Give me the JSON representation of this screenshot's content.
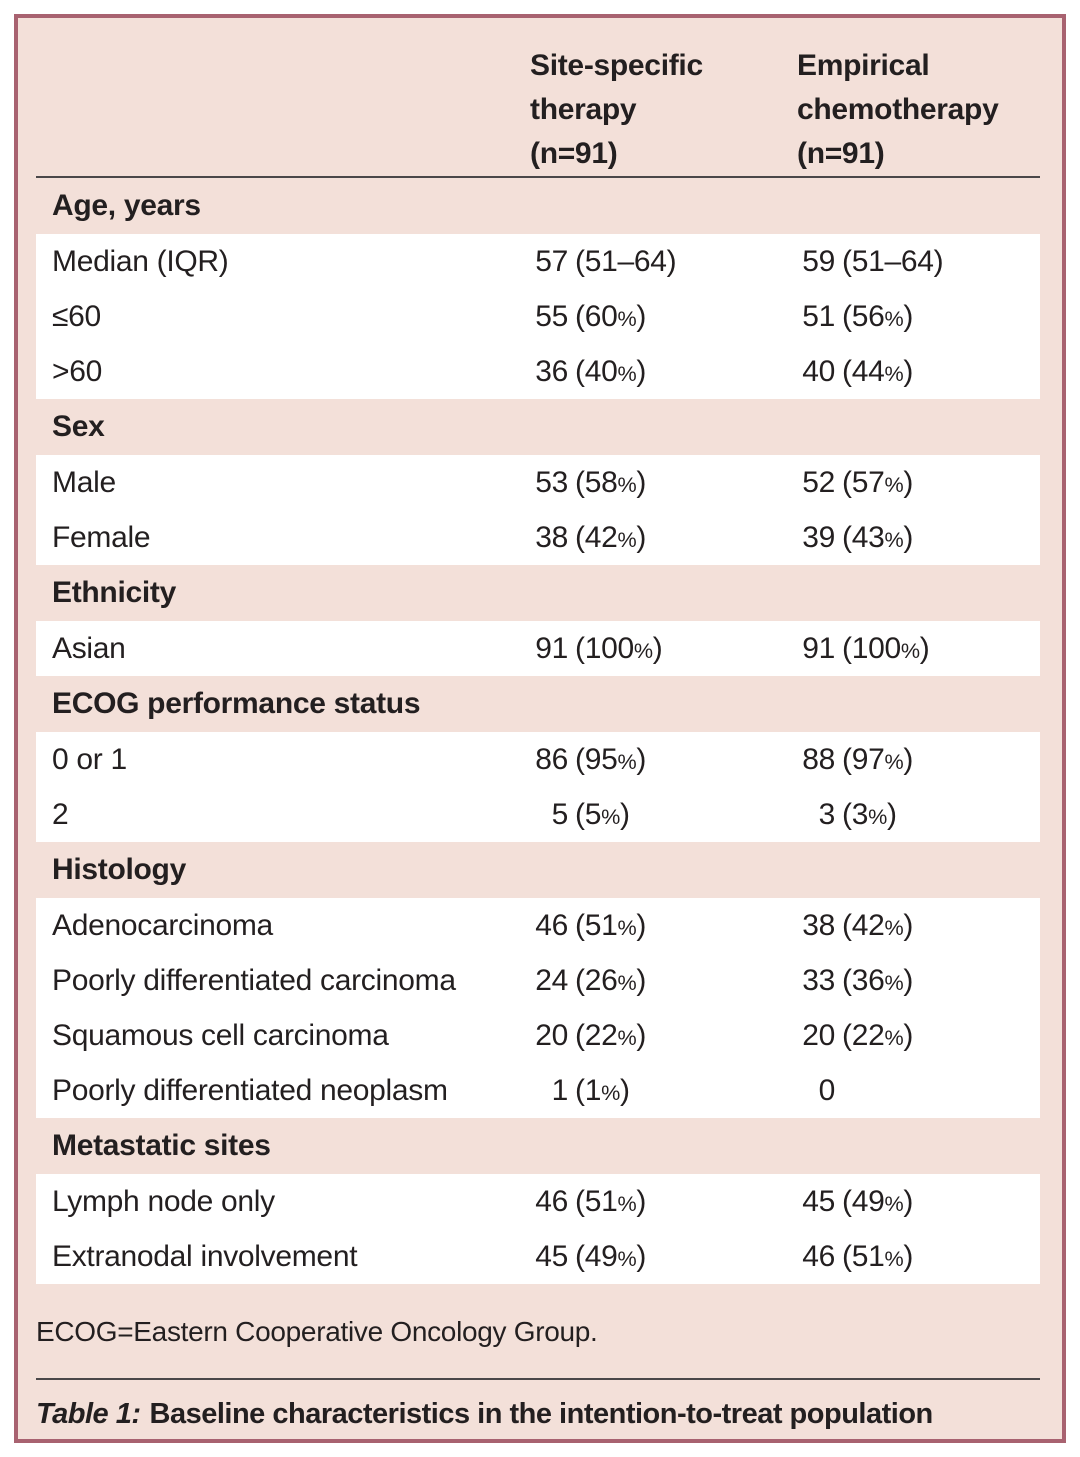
{
  "colors": {
    "panel_bg": "#f3e0d9",
    "panel_border": "#a86270",
    "row_bg": "#ffffff",
    "text": "#231f20",
    "rule": "#4a4749"
  },
  "header": {
    "col_site": [
      "Site-specific",
      "therapy",
      "(n=91)"
    ],
    "col_chemo": [
      "Empirical",
      "chemotherapy",
      "(n=91)"
    ]
  },
  "sections": [
    {
      "title": "Age, years",
      "rows": [
        {
          "label": "Median (IQR)",
          "a": [
            "57",
            "(51–64)"
          ],
          "b": [
            "59",
            "(51–64)"
          ]
        },
        {
          "label": "≤60",
          "a": [
            "55",
            "(60%)"
          ],
          "b": [
            "51",
            "(56%)"
          ]
        },
        {
          "label": ">60",
          "a": [
            "36",
            "(40%)"
          ],
          "b": [
            "40",
            "(44%)"
          ]
        }
      ]
    },
    {
      "title": "Sex",
      "rows": [
        {
          "label": "Male",
          "a": [
            "53",
            "(58%)"
          ],
          "b": [
            "52",
            "(57%)"
          ]
        },
        {
          "label": "Female",
          "a": [
            "38",
            "(42%)"
          ],
          "b": [
            "39",
            "(43%)"
          ]
        }
      ]
    },
    {
      "title": "Ethnicity",
      "rows": [
        {
          "label": "Asian",
          "a": [
            "91",
            "(100%)"
          ],
          "b": [
            "91",
            "(100%)"
          ]
        }
      ]
    },
    {
      "title": "ECOG performance status",
      "rows": [
        {
          "label": "0 or 1",
          "a": [
            "86",
            "(95%)"
          ],
          "b": [
            "88",
            "(97%)"
          ]
        },
        {
          "label": "2",
          "a": [
            "5",
            "(5%)"
          ],
          "b": [
            "3",
            "(3%)"
          ]
        }
      ]
    },
    {
      "title": "Histology",
      "rows": [
        {
          "label": "Adenocarcinoma",
          "a": [
            "46",
            "(51%)"
          ],
          "b": [
            "38",
            "(42%)"
          ]
        },
        {
          "label": "Poorly differentiated carcinoma",
          "a": [
            "24",
            "(26%)"
          ],
          "b": [
            "33",
            "(36%)"
          ]
        },
        {
          "label": "Squamous cell carcinoma",
          "a": [
            "20",
            "(22%)"
          ],
          "b": [
            "20",
            "(22%)"
          ]
        },
        {
          "label": "Poorly differentiated neoplasm",
          "a": [
            "1",
            "(1%)"
          ],
          "b": [
            "0",
            ""
          ]
        }
      ]
    },
    {
      "title": "Metastatic sites",
      "rows": [
        {
          "label": "Lymph node only",
          "a": [
            "46",
            "(51%)"
          ],
          "b": [
            "45",
            "(49%)"
          ]
        },
        {
          "label": "Extranodal involvement",
          "a": [
            "45",
            "(49%)"
          ],
          "b": [
            "46",
            "(51%)"
          ]
        }
      ]
    }
  ],
  "footnote": "ECOG=Eastern Cooperative Oncology Group.",
  "caption": {
    "label": "Table 1:",
    "text": "Baseline characteristics in the intention-to-treat population"
  }
}
